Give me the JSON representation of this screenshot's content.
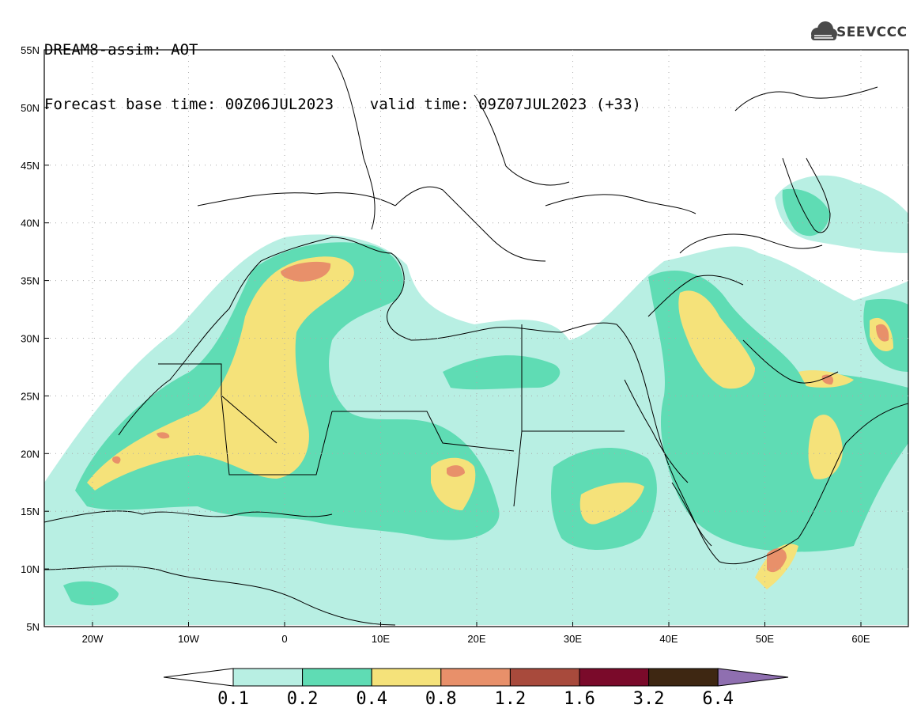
{
  "header": {
    "line1": "DREAM8-assim: AOT",
    "line2": "Forecast base time: 00Z06JUL2023    valid time: 09Z07JUL2023 (+33)"
  },
  "logo": {
    "text": "SEEVCCC",
    "icon": "cloud-icon"
  },
  "map": {
    "lat_labels": [
      "55N",
      "50N",
      "45N",
      "40N",
      "35N",
      "30N",
      "25N",
      "20N",
      "15N",
      "10N",
      "5N"
    ],
    "lon_labels": [
      "20W",
      "10W",
      "0",
      "10E",
      "20E",
      "30E",
      "40E",
      "50E",
      "60E"
    ]
  },
  "colorbar": {
    "labels": [
      "0.1",
      "0.2",
      "0.4",
      "0.8",
      "1.2",
      "1.6",
      "3.2",
      "6.4"
    ],
    "colors": [
      "#b8efe3",
      "#5fdcb4",
      "#f5e27a",
      "#e8906a",
      "#a84a3c",
      "#7a0a2a",
      "#3e2712",
      "#8f6fb0"
    ]
  },
  "colors": {
    "low": "#b8efe3",
    "mid": "#5fdcb4",
    "high": "#f5e27a",
    "higher": "#e8906a",
    "peak": "#c8675a"
  }
}
